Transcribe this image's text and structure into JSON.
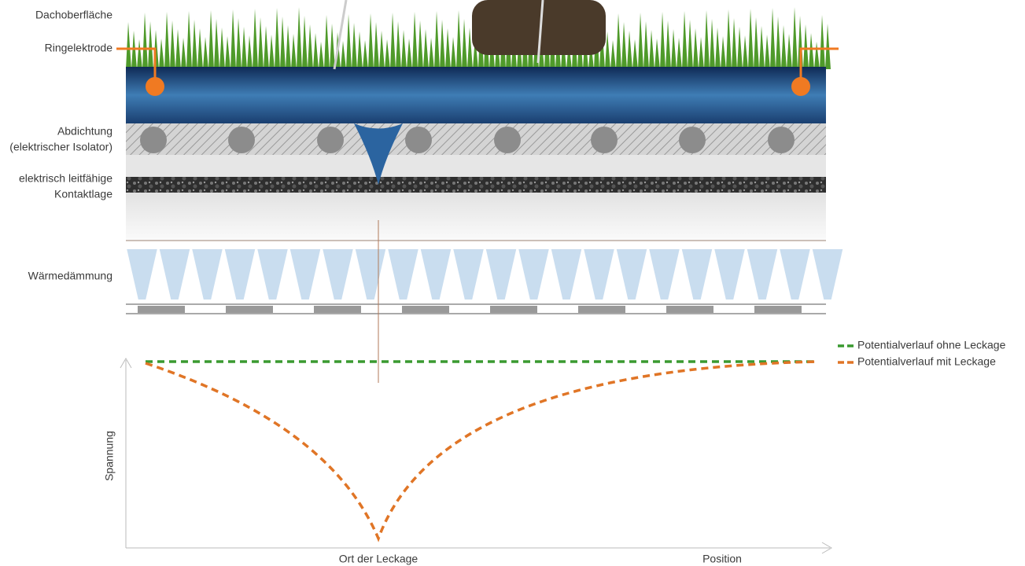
{
  "layers": [
    [
      "Dachoberfläche"
    ],
    [
      "Ringelektrode"
    ],
    [
      "Abdichtung",
      "(elektrischer Isolator)"
    ],
    [
      "elektrisch leitfähige",
      "Kontaktlage"
    ],
    [
      "Wärmedämmung"
    ]
  ],
  "legend": [
    "Potentialverlauf ohne Leckage",
    "Potentialverlauf mit Leckage"
  ],
  "y_axis_label": "Spannung",
  "x_labels": [
    "Ort der Leckage",
    "Position"
  ]
}
